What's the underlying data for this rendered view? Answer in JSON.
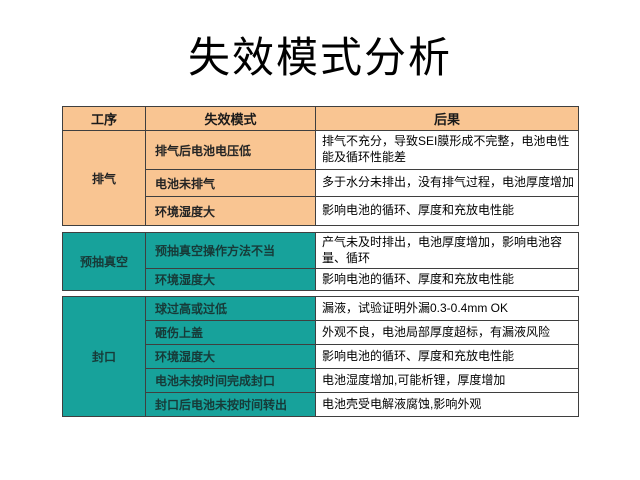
{
  "slide": {
    "title": "失效模式分析"
  },
  "colors": {
    "peach": "#f9c592",
    "teal": "#17a29b",
    "border": "#3f3f3f"
  },
  "table": {
    "headers": {
      "process": "工序",
      "failure_mode": "失效模式",
      "consequence": "后果"
    },
    "groups": [
      {
        "process": "排气",
        "theme": "peach",
        "rows": [
          {
            "mode": "排气后电池电压低",
            "consequence": "排气不充分，导致SEI膜形成不完整，电池电性能及循环性能差"
          },
          {
            "mode": "电池未排气",
            "consequence": "多于水分未排出，没有排气过程，电池厚度增加"
          },
          {
            "mode": "环境湿度大",
            "consequence": "影响电池的循环、厚度和充放电性能"
          }
        ]
      },
      {
        "process": "预抽真空",
        "theme": "teal",
        "rows": [
          {
            "mode": "预抽真空操作方法不当",
            "consequence": "产气未及时排出，电池厚度增加，影响电池容量、循环"
          },
          {
            "mode": "环境湿度大",
            "consequence": "影响电池的循环、厚度和充放电性能"
          }
        ]
      },
      {
        "process": "封口",
        "theme": "teal",
        "rows": [
          {
            "mode": "球过高或过低",
            "consequence": "漏液，试验证明外漏0.3-0.4mm OK"
          },
          {
            "mode": "砸伤上盖",
            "consequence": "外观不良，电池局部厚度超标，有漏液风险"
          },
          {
            "mode": "环境湿度大",
            "consequence": "影响电池的循环、厚度和充放电性能"
          },
          {
            "mode": "电池未按时间完成封口",
            "consequence": "电池湿度增加,可能析锂，厚度增加"
          },
          {
            "mode": "封口后电池未按时间转出",
            "consequence": "电池壳受电解液腐蚀,影响外观"
          }
        ]
      }
    ]
  }
}
